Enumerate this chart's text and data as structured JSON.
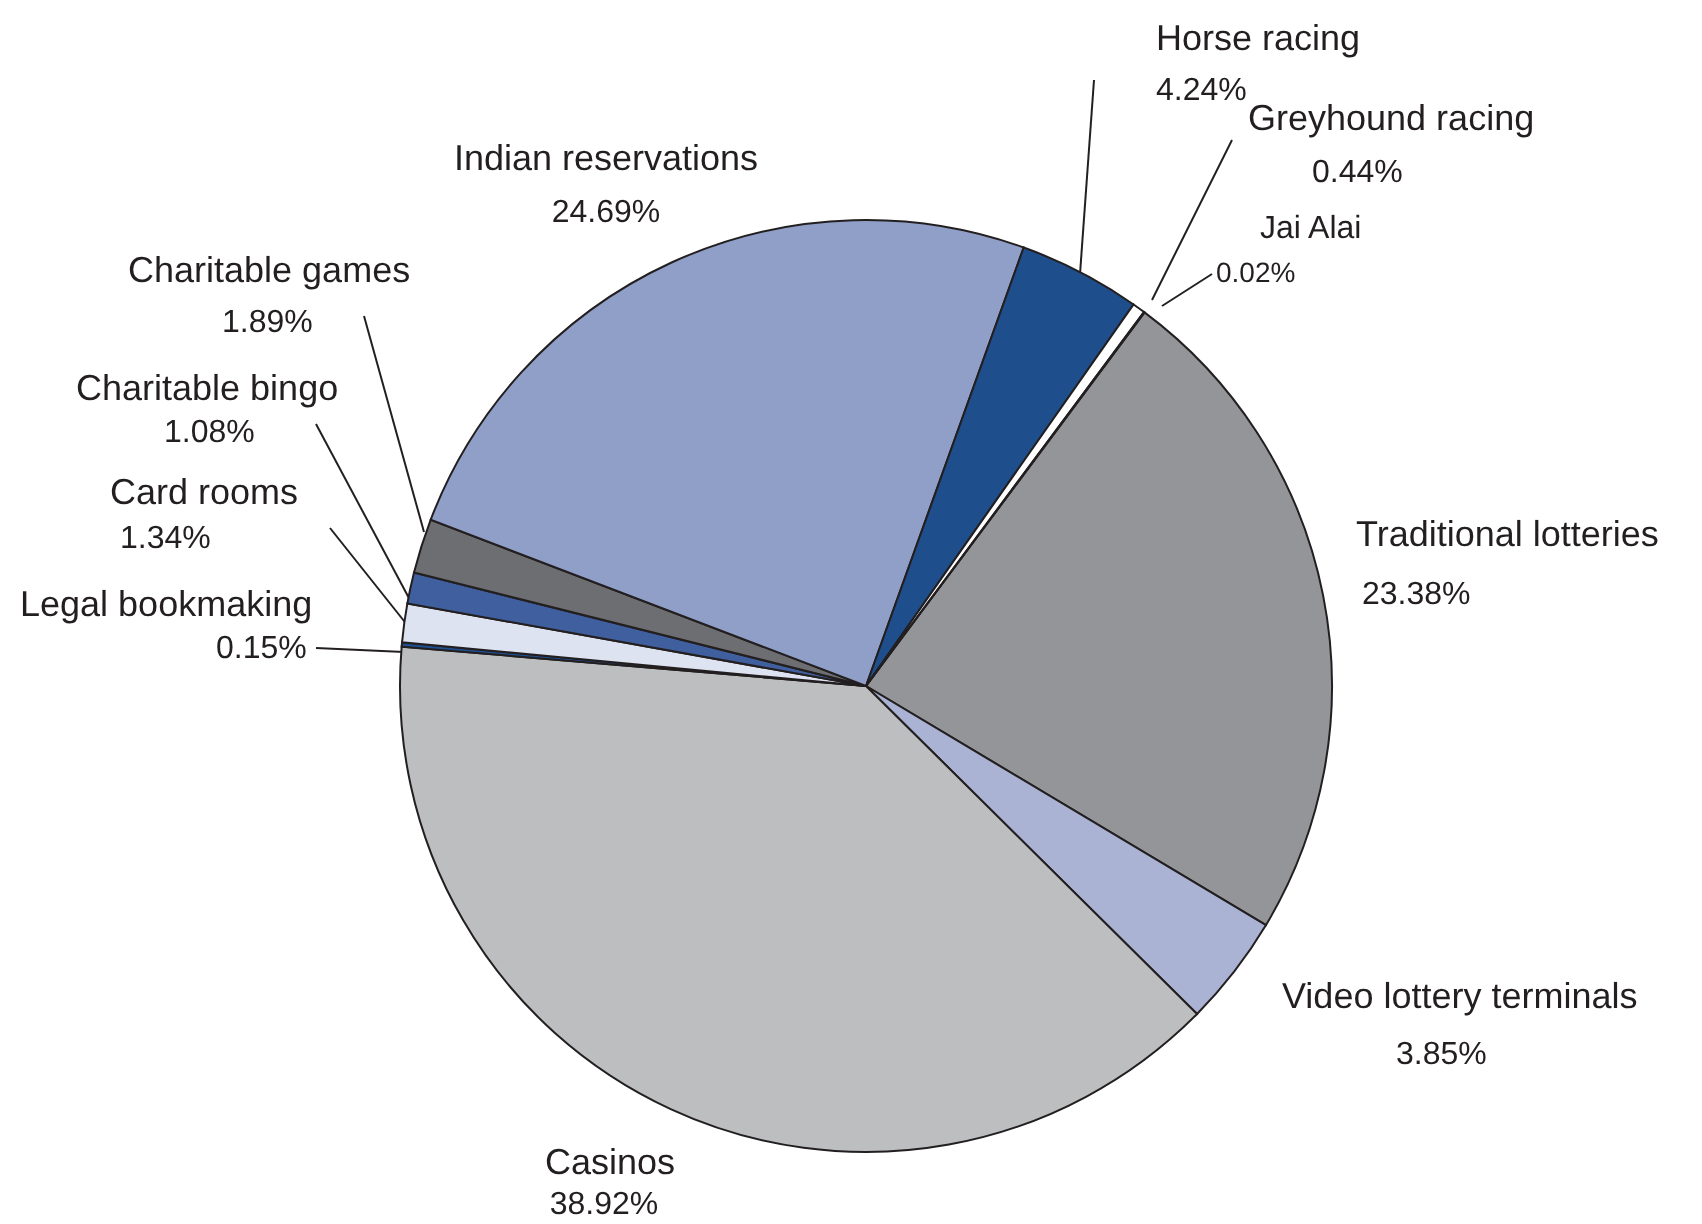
{
  "chart_data": {
    "type": "pie",
    "categories": [
      "Traditional lotteries",
      "Video lottery terminals",
      "Casinos",
      "Legal bookmaking",
      "Card rooms",
      "Charitable bingo",
      "Charitable games",
      "Indian reservations",
      "Horse racing",
      "Greyhound racing",
      "Jai Alai"
    ],
    "values": [
      23.38,
      3.85,
      38.92,
      0.15,
      1.34,
      1.08,
      1.89,
      24.69,
      4.24,
      0.44,
      0.02
    ],
    "value_labels": [
      "23.38%",
      "3.85%",
      "38.92%",
      "0.15%",
      "1.34%",
      "1.08%",
      "1.89%",
      "24.69%",
      "4.24%",
      "0.44%",
      "0.02%"
    ],
    "colors": [
      "#939598",
      "#aab3d3",
      "#bcbec0",
      "#1f4e8c",
      "#dde3f0",
      "#3f5f9e",
      "#6d6e71",
      "#8f9fc8",
      "#1f4e8c",
      "#ffffff",
      "#1f4e8c"
    ],
    "legend": false
  }
}
